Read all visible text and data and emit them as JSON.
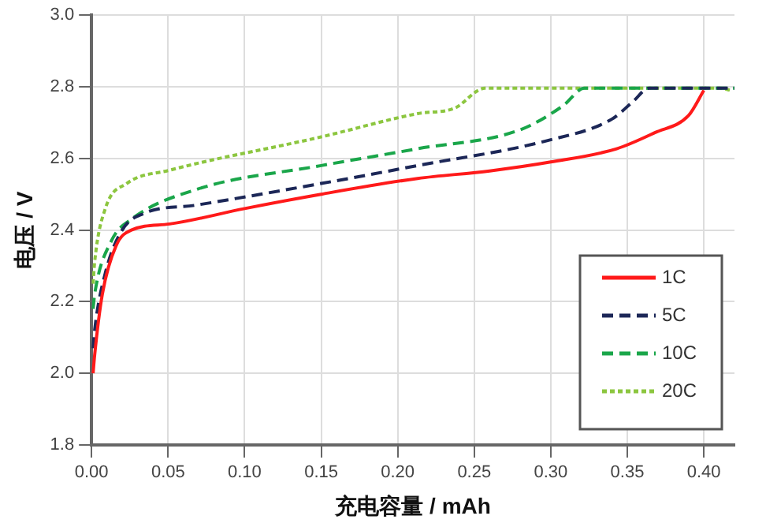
{
  "chart_data": {
    "type": "line",
    "xlabel": "充电容量 / mAh",
    "ylabel": "电压 / V",
    "xlim": [
      0,
      0.42
    ],
    "ylim": [
      1.8,
      3.0
    ],
    "xticks": [
      {
        "value": 0,
        "label": "0.00"
      },
      {
        "value": 0.05,
        "label": "0.05"
      },
      {
        "value": 0.1,
        "label": "0.10"
      },
      {
        "value": 0.15,
        "label": "0.15"
      },
      {
        "value": 0.2,
        "label": "0.20"
      },
      {
        "value": 0.25,
        "label": "0.25"
      },
      {
        "value": 0.3,
        "label": "0.30"
      },
      {
        "value": 0.35,
        "label": "0.35"
      },
      {
        "value": 0.4,
        "label": "0.40"
      }
    ],
    "yticks": [
      1.8,
      {
        "value": 2,
        "label": "2.0"
      },
      2.2,
      2.4,
      2.6,
      2.8,
      {
        "value": 3,
        "label": "3.0"
      }
    ],
    "grid": true,
    "legend": "bottom right",
    "marker": "none",
    "series": [
      {
        "name": "1C",
        "color": "#ff1a1a",
        "line_style": "solid",
        "x": [
          0.001,
          0.002,
          0.007,
          0.016,
          0.026,
          0.051,
          0.1,
          0.15,
          0.213,
          0.26,
          0.3,
          0.343,
          0.368,
          0.39,
          0.4
        ],
        "values": [
          2.0,
          2.05,
          2.22,
          2.356,
          2.4,
          2.417,
          2.46,
          2.5,
          2.544,
          2.565,
          2.59,
          2.627,
          2.672,
          2.72,
          2.79
        ]
      },
      {
        "name": "5C",
        "color": "#1c2757",
        "line_style": "dashed",
        "x": [
          0.001,
          0.002,
          0.009,
          0.02,
          0.034,
          0.069,
          0.15,
          0.213,
          0.298,
          0.34,
          0.354,
          0.364,
          0.42
        ],
        "values": [
          2.07,
          2.12,
          2.28,
          2.4,
          2.446,
          2.47,
          2.53,
          2.58,
          2.65,
          2.71,
          2.76,
          2.796,
          2.796
        ]
      },
      {
        "name": "10C",
        "color": "#1aa64a",
        "line_style": "dashed",
        "x": [
          0.001,
          0.002,
          0.013,
          0.026,
          0.069,
          0.15,
          0.213,
          0.28,
          0.308,
          0.322,
          0.42
        ],
        "values": [
          2.18,
          2.22,
          2.37,
          2.43,
          2.514,
          2.58,
          2.627,
          2.68,
          2.747,
          2.796,
          2.796
        ]
      },
      {
        "name": "20C",
        "color": "#8cc63f",
        "line_style": "dotted",
        "x": [
          0.001,
          0.002,
          0.009,
          0.023,
          0.051,
          0.15,
          0.213,
          0.237,
          0.257,
          0.41,
          0.418
        ],
        "values": [
          2.25,
          2.31,
          2.46,
          2.53,
          2.567,
          2.66,
          2.725,
          2.74,
          2.796,
          2.796,
          2.79
        ]
      }
    ]
  }
}
